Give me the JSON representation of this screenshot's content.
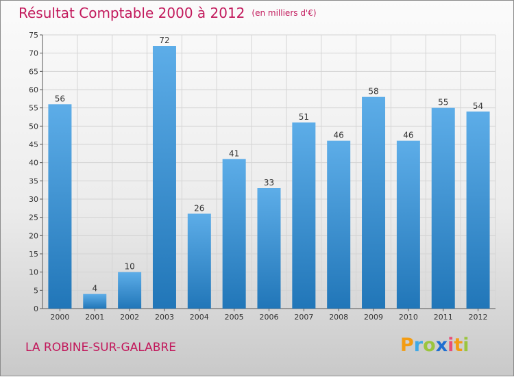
{
  "header": {
    "title": "Résultat Comptable 2000 à 2012",
    "subtitle": "(en milliers d'€)"
  },
  "location": "LA ROBINE-SUR-GALABRE",
  "logo": {
    "letters": [
      "P",
      "r",
      "o",
      "x",
      "i",
      "t",
      "i"
    ],
    "colors": [
      "#f39c12",
      "#3fa9e6",
      "#9bc53d",
      "#1e6fd1",
      "#e94e77",
      "#f39c12",
      "#9bc53d"
    ]
  },
  "colors": {
    "bar_light": "#5dade8",
    "bar_dark": "#2176b8",
    "title": "#c2185b",
    "grid": "#d4d4d4"
  },
  "chart_data": {
    "type": "bar",
    "categories": [
      "2000",
      "2001",
      "2002",
      "2003",
      "2004",
      "2005",
      "2006",
      "2007",
      "2008",
      "2009",
      "2010",
      "2011",
      "2012"
    ],
    "values": [
      56,
      4,
      10,
      72,
      26,
      41,
      33,
      51,
      46,
      58,
      46,
      55,
      54
    ],
    "data_labels": [
      "56",
      "4",
      "10",
      "72",
      "26",
      "41",
      "33",
      "51",
      "46",
      "58",
      "46",
      "55",
      "54"
    ],
    "ylim": [
      0,
      75
    ],
    "yticks": [
      0,
      5,
      10,
      15,
      20,
      25,
      30,
      35,
      40,
      45,
      50,
      55,
      60,
      65,
      70,
      75
    ],
    "ytick_labels": [
      "0",
      "5",
      "10",
      "15",
      "20",
      "25",
      "30",
      "35",
      "40",
      "45",
      "50",
      "55",
      "60",
      "65",
      "70",
      "75"
    ],
    "grid": true
  }
}
